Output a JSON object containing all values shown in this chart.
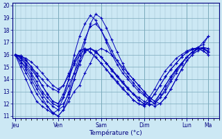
{
  "xlabel": "Température (°c)",
  "background_color": "#cce8f4",
  "grid_color_major": "#7aaabb",
  "grid_color_minor": "#99bbcc",
  "line_color": "#0000bb",
  "ylim": [
    10.8,
    20.2
  ],
  "yticks": [
    11,
    12,
    13,
    14,
    15,
    16,
    17,
    18,
    19,
    20
  ],
  "day_labels": [
    "Jeu",
    "Ven",
    "Sam",
    "Dim",
    "Lun",
    "Ma"
  ],
  "day_positions": [
    0,
    8,
    16,
    24,
    32,
    36
  ],
  "xlim": [
    -0.5,
    38
  ],
  "forecasts": [
    [
      16.0,
      15.5,
      14.8,
      14.0,
      13.2,
      12.5,
      11.8,
      11.2,
      11.0,
      11.5,
      12.2,
      13.0,
      13.5,
      14.5,
      15.3,
      16.2,
      16.5,
      16.3,
      16.0,
      15.5,
      15.0,
      14.5,
      14.0,
      13.5,
      13.0,
      12.5,
      12.2,
      12.0,
      12.5,
      13.2,
      14.0,
      14.8,
      15.5,
      16.0,
      16.5,
      17.0,
      17.5
    ],
    [
      16.0,
      15.8,
      15.3,
      14.8,
      14.2,
      13.5,
      12.8,
      12.2,
      12.0,
      12.5,
      13.5,
      14.5,
      15.5,
      16.3,
      16.5,
      16.2,
      15.8,
      15.3,
      14.8,
      14.2,
      13.7,
      13.2,
      12.8,
      12.5,
      12.2,
      12.0,
      11.8,
      12.0,
      12.5,
      13.2,
      14.0,
      14.8,
      15.5,
      16.0,
      16.3,
      16.5,
      16.5
    ],
    [
      16.0,
      15.7,
      15.2,
      14.5,
      13.8,
      13.0,
      12.5,
      12.0,
      11.8,
      12.0,
      12.8,
      14.0,
      15.2,
      16.2,
      16.5,
      16.2,
      15.8,
      15.3,
      14.7,
      14.2,
      13.7,
      13.2,
      12.8,
      12.3,
      12.0,
      11.9,
      12.0,
      12.5,
      13.0,
      13.8,
      14.5,
      15.2,
      15.8,
      16.2,
      16.5,
      16.6,
      16.5
    ],
    [
      16.0,
      15.9,
      15.6,
      15.0,
      14.3,
      13.5,
      12.8,
      12.2,
      12.0,
      12.8,
      14.0,
      15.3,
      16.3,
      16.5,
      16.2,
      15.8,
      15.3,
      14.8,
      14.2,
      13.7,
      13.2,
      12.8,
      12.3,
      12.0,
      11.9,
      12.2,
      12.8,
      13.5,
      14.2,
      14.8,
      15.3,
      15.8,
      16.2,
      16.4,
      16.5,
      16.3,
      16.0
    ],
    [
      16.0,
      15.5,
      15.0,
      14.3,
      13.5,
      12.8,
      12.2,
      11.8,
      11.5,
      11.8,
      13.0,
      14.5,
      16.0,
      17.3,
      18.3,
      18.5,
      18.0,
      17.2,
      16.3,
      15.5,
      14.8,
      14.2,
      13.7,
      13.2,
      12.8,
      12.3,
      12.0,
      12.5,
      13.2,
      14.0,
      14.7,
      15.3,
      15.8,
      16.2,
      16.5,
      16.5,
      16.3
    ],
    [
      16.0,
      15.3,
      14.5,
      13.7,
      12.8,
      12.2,
      11.8,
      11.3,
      11.0,
      11.5,
      12.5,
      14.0,
      15.5,
      17.0,
      18.5,
      19.3,
      19.0,
      18.2,
      17.2,
      16.2,
      15.3,
      14.5,
      14.0,
      13.5,
      13.0,
      12.5,
      12.2,
      12.8,
      13.5,
      14.2,
      14.8,
      15.3,
      15.8,
      16.2,
      16.5,
      16.5,
      16.2
    ],
    [
      16.0,
      15.0,
      14.0,
      13.0,
      12.2,
      11.8,
      11.5,
      11.2,
      11.5,
      12.5,
      14.0,
      16.0,
      17.5,
      18.5,
      19.2,
      18.8,
      18.0,
      17.0,
      16.0,
      15.2,
      14.5,
      14.0,
      13.5,
      13.0,
      12.7,
      12.3,
      12.0,
      12.8,
      13.5,
      14.2,
      14.8,
      15.3,
      15.8,
      16.2,
      16.5,
      16.5,
      16.2
    ],
    [
      16.0,
      15.8,
      15.5,
      15.0,
      14.5,
      14.0,
      13.5,
      13.2,
      13.0,
      13.5,
      14.5,
      15.5,
      16.3,
      16.5,
      16.2,
      15.8,
      15.3,
      14.8,
      14.3,
      13.8,
      13.3,
      12.8,
      12.3,
      12.0,
      11.8,
      12.2,
      12.8,
      13.5,
      14.2,
      14.8,
      15.3,
      15.8,
      16.2,
      16.4,
      16.6,
      16.8,
      17.5
    ],
    [
      16.0,
      15.9,
      15.7,
      15.4,
      15.0,
      14.5,
      14.0,
      13.5,
      13.2,
      13.5,
      14.3,
      15.2,
      16.0,
      16.4,
      16.5,
      16.3,
      15.8,
      15.3,
      14.8,
      14.3,
      13.8,
      13.3,
      12.8,
      12.3,
      12.0,
      12.5,
      13.2,
      14.0,
      14.7,
      15.2,
      15.7,
      16.0,
      16.3,
      16.5,
      16.5,
      16.3,
      16.0
    ]
  ]
}
